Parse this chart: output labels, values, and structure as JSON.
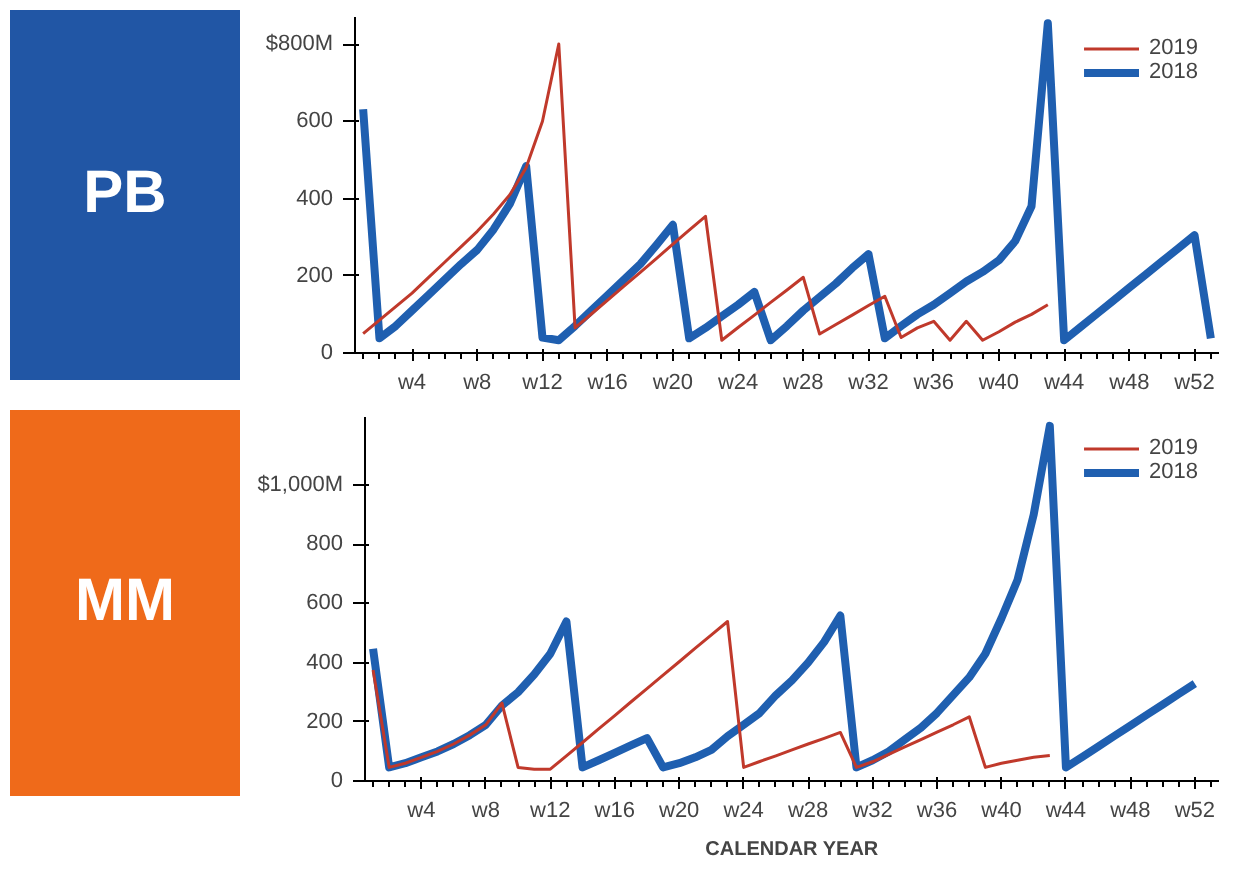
{
  "chart_data": [
    {
      "type": "line",
      "title": "PB",
      "legend": "top right",
      "grid": false,
      "ylim": [
        0,
        870
      ],
      "yticks": [
        0,
        200,
        400,
        600,
        {
          "value": 800,
          "label": "$800M"
        }
      ],
      "categories": [
        null,
        null,
        null,
        "w4",
        null,
        null,
        null,
        "w8",
        null,
        null,
        null,
        "w12",
        null,
        null,
        null,
        "w16",
        null,
        null,
        null,
        "w20",
        null,
        null,
        null,
        "w24",
        null,
        null,
        null,
        "w28",
        null,
        null,
        null,
        "w32",
        null,
        null,
        null,
        "w36",
        null,
        null,
        null,
        "w40",
        null,
        null,
        null,
        "w44",
        null,
        null,
        null,
        "w48",
        null,
        null,
        null,
        "w52",
        null
      ],
      "series": [
        {
          "name": "2019",
          "color": "#c0392b",
          "values": [
            50,
            85,
            120,
            155,
            195,
            235,
            275,
            315,
            360,
            410,
            480,
            600,
            800,
            65,
            101,
            137,
            173,
            209,
            245,
            282,
            318,
            354,
            33,
            66,
            98,
            131,
            163,
            196,
            49,
            74,
            98,
            123,
            147,
            40,
            65,
            82,
            33,
            82,
            33,
            55,
            80,
            100,
            125,
            null,
            null,
            null,
            null,
            null,
            null,
            null,
            null,
            null,
            null
          ]
        },
        {
          "name": "2018",
          "color": "#1f5fb0",
          "values": [
            631,
            38,
            70,
            110,
            150,
            190,
            230,
            267,
            320,
            386,
            484,
            40,
            33,
            70,
            110,
            150,
            190,
            230,
            280,
            332,
            38,
            65,
            95,
            125,
            158,
            33,
            70,
            110,
            145,
            180,
            220,
            256,
            38,
            70,
            100,
            125,
            155,
            185,
            210,
            240,
            290,
            380,
            854,
            33,
            67,
            101,
            135,
            169,
            203,
            237,
            271,
            305,
            38
          ]
        }
      ]
    },
    {
      "type": "line",
      "title": "MM",
      "legend": "top right",
      "grid": false,
      "xlabel": "CALENDAR YEAR",
      "ylim": [
        0,
        1230
      ],
      "yticks": [
        0,
        200,
        400,
        600,
        800,
        {
          "value": 1000,
          "label": "$1,000M"
        }
      ],
      "categories": [
        null,
        null,
        null,
        "w4",
        null,
        null,
        null,
        "w8",
        null,
        null,
        null,
        "w12",
        null,
        null,
        null,
        "w16",
        null,
        null,
        null,
        "w20",
        null,
        null,
        null,
        "w24",
        null,
        null,
        null,
        "w28",
        null,
        null,
        null,
        "w32",
        null,
        null,
        null,
        "w36",
        null,
        null,
        null,
        "w40",
        null,
        null,
        null,
        "w44",
        null,
        null,
        null,
        "w48",
        null,
        null,
        null,
        "w52",
        null
      ],
      "series": [
        {
          "name": "2019",
          "color": "#c0392b",
          "values": [
            375,
            46,
            60,
            80,
            100,
            125,
            155,
            190,
            263,
            46,
            40,
            40,
            85,
            130,
            176,
            221,
            267,
            312,
            358,
            403,
            449,
            494,
            539,
            46,
            66,
            85,
            105,
            125,
            144,
            164,
            46,
            65,
            90,
            115,
            140,
            165,
            190,
            217,
            46,
            60,
            70,
            80,
            86,
            null,
            null,
            null,
            null,
            null,
            null,
            null,
            null,
            null,
            null
          ]
        },
        {
          "name": "2018",
          "color": "#1f5fb0",
          "values": [
            447,
            46,
            60,
            80,
            100,
            125,
            155,
            190,
            255,
            300,
            360,
            430,
            539,
            46,
            70,
            95,
            120,
            145,
            46,
            60,
            80,
            105,
            151,
            190,
            230,
            290,
            340,
            400,
            470,
            559,
            46,
            70,
            100,
            140,
            180,
            230,
            290,
            350,
            430,
            550,
            680,
            900,
            1200,
            46,
            81,
            116,
            152,
            187,
            223,
            258,
            294,
            329,
            null
          ]
        }
      ]
    }
  ]
}
